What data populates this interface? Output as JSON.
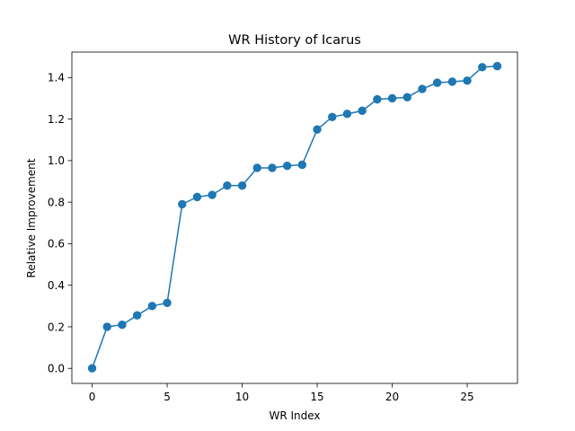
{
  "chart_data": {
    "type": "line",
    "title": "WR History of Icarus",
    "xlabel": "WR Index",
    "ylabel": "Relative Improvement",
    "xlim": [
      -1.35,
      28.35
    ],
    "ylim": [
      -0.0725,
      1.5225
    ],
    "xticks": [
      0,
      5,
      10,
      15,
      20,
      25
    ],
    "xtick_labels": [
      "0",
      "5",
      "10",
      "15",
      "20",
      "25"
    ],
    "yticks": [
      0.0,
      0.2,
      0.4,
      0.6,
      0.8,
      1.0,
      1.2,
      1.4
    ],
    "ytick_labels": [
      "0.0",
      "0.2",
      "0.4",
      "0.6",
      "0.8",
      "1.0",
      "1.2",
      "1.4"
    ],
    "grid": false,
    "color": "#1f77b4",
    "marker": "circle",
    "series": [
      {
        "x": [
          0,
          1,
          2,
          3,
          4,
          5,
          6,
          7,
          8,
          9,
          10,
          11,
          12,
          13,
          14,
          15,
          16,
          17,
          18,
          19,
          20,
          21,
          22,
          23,
          24,
          25,
          26,
          27
        ],
        "values": [
          0.0,
          0.2,
          0.21,
          0.255,
          0.3,
          0.315,
          0.79,
          0.825,
          0.835,
          0.88,
          0.88,
          0.965,
          0.965,
          0.975,
          0.98,
          1.15,
          1.21,
          1.225,
          1.24,
          1.295,
          1.3,
          1.305,
          1.345,
          1.375,
          1.38,
          1.385,
          1.45,
          1.455
        ]
      }
    ]
  }
}
